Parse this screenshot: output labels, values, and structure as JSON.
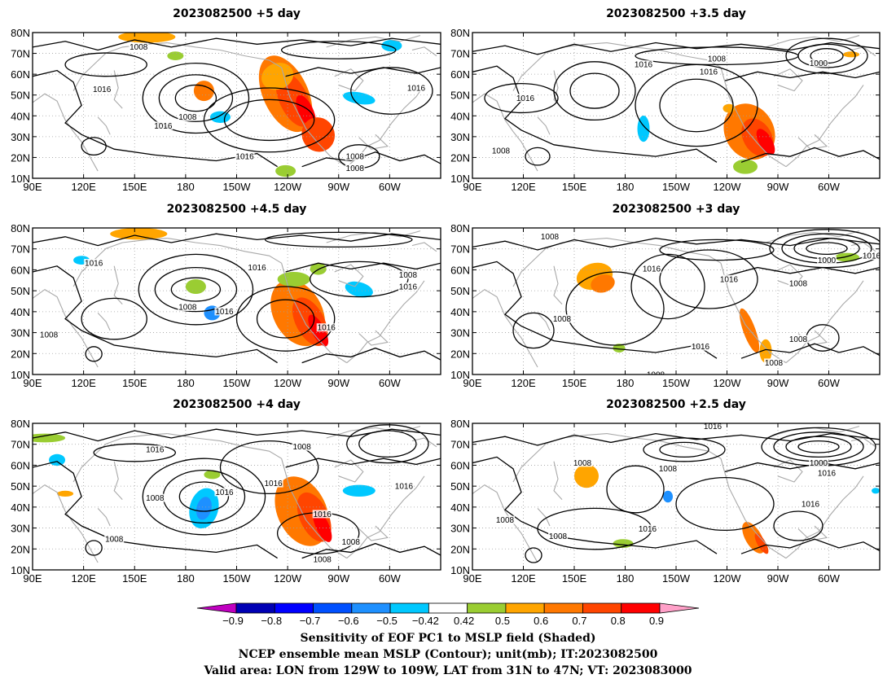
{
  "panels": [
    {
      "title": "2023082500  +5 day"
    },
    {
      "title": "2023082500  +3.5  day"
    },
    {
      "title": "2023082500  +4.5  day"
    },
    {
      "title": "2023082500  +3  day"
    },
    {
      "title": "2023082500  +4  day"
    },
    {
      "title": "2023082500  +2.5  day"
    }
  ],
  "axes": {
    "lon_ticks": [
      "90E",
      "120E",
      "150E",
      "180",
      "150W",
      "120W",
      "90W",
      "60W"
    ],
    "lat_ticks": [
      "10N",
      "20N",
      "30N",
      "40N",
      "50N",
      "60N",
      "70N",
      "80N"
    ],
    "lon_range": [
      "90E",
      "30W"
    ],
    "lat_range": [
      "10N",
      "80N"
    ]
  },
  "contour_labels": {
    "p0": [
      "1008",
      "1016",
      "1008",
      "1016",
      "1016",
      "1008",
      "1008",
      "1016"
    ],
    "p1": [
      "1016",
      "1008",
      "1016",
      "1000",
      "1016",
      "1008"
    ],
    "p2": [
      "1016",
      "1016",
      "1008",
      "1016",
      "1008",
      "1008",
      "1016",
      "1016"
    ],
    "p3": [
      "1008",
      "1016",
      "1008",
      "1016",
      "1000",
      "1008",
      "1016",
      "1016",
      "1008",
      "1008",
      "1008"
    ],
    "p4": [
      "1016",
      "1008",
      "1008",
      "1016",
      "1016",
      "1016",
      "1008",
      "1016",
      "1008",
      "1008"
    ],
    "p5": [
      "1016",
      "1008",
      "1008",
      "1008",
      "1016",
      "1000",
      "1016",
      "1016",
      "1008"
    ]
  },
  "colorbar": {
    "ticks": [
      "−0.9",
      "−0.8",
      "−0.7",
      "−0.6",
      "−0.5",
      "−0.42",
      "0.42",
      "0.5",
      "0.6",
      "0.7",
      "0.8",
      "0.9"
    ],
    "colors": [
      "#c000c0",
      "#0000b4",
      "#0000ff",
      "#0050ff",
      "#1e90ff",
      "#00c8ff",
      "#ffffff",
      "#9acd32",
      "#ffa500",
      "#ff7800",
      "#ff4500",
      "#ff0000",
      "#ffa0c8"
    ]
  },
  "caption": {
    "line1": "Sensitivity of EOF PC1 to MSLP field (Shaded)",
    "line2": "NCEP ensemble mean MSLP (Contour); unit(mb); IT:2023082500",
    "line3": "Valid area: LON from 129W to 109W, LAT from 31N to 47N; VT: 2023083000"
  },
  "colors": {
    "contour": "#000000",
    "coast": "#a9a9a9",
    "grid": "#a0a0a0"
  }
}
